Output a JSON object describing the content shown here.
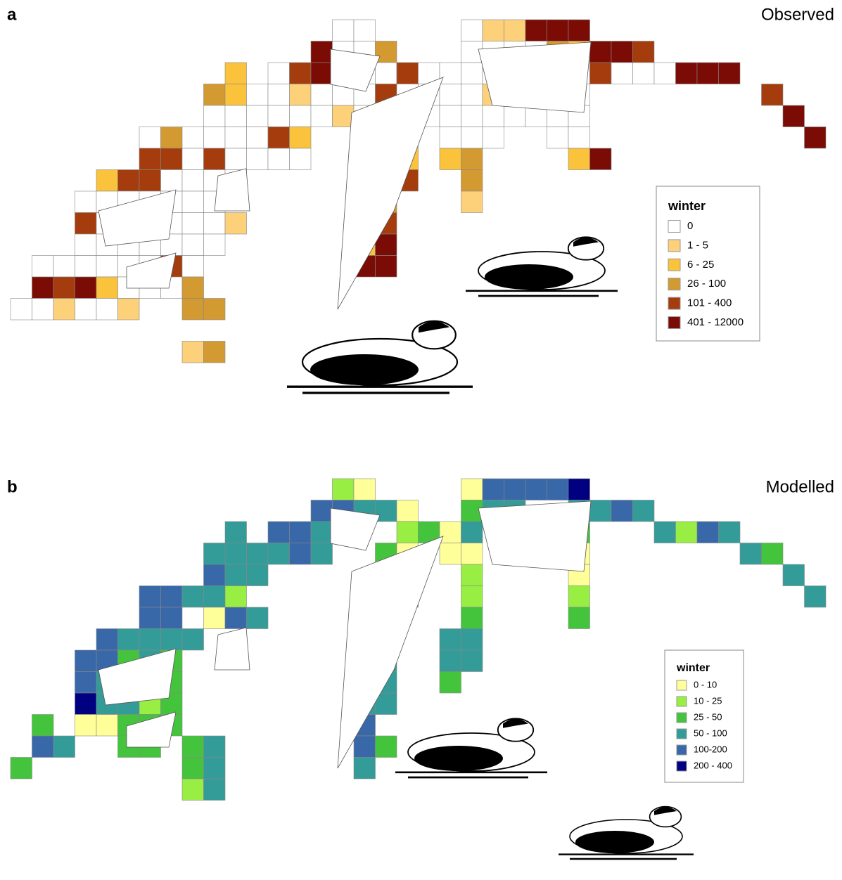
{
  "panels": [
    {
      "letter": "a",
      "title": "Observed",
      "legend": {
        "title": "winter",
        "items": [
          {
            "label": "0",
            "color": "#ffffff"
          },
          {
            "label": "1 - 5",
            "color": "#fdd07a"
          },
          {
            "label": "6 - 25",
            "color": "#fbc33c"
          },
          {
            "label": "26 - 100",
            "color": "#d49a32"
          },
          {
            "label": "101 - 400",
            "color": "#a53c0e"
          },
          {
            "label": "401 - 12000",
            "color": "#7a0c05"
          }
        ]
      }
    },
    {
      "letter": "b",
      "title": "Modelled",
      "legend": {
        "title": "winter",
        "items": [
          {
            "label": "0 - 10",
            "color": "#ffff99"
          },
          {
            "label": "10 - 25",
            "color": "#99ee44"
          },
          {
            "label": "25 - 50",
            "color": "#44c43c"
          },
          {
            "label": "50 - 100",
            "color": "#339c99"
          },
          {
            "label": "100-200",
            "color": "#3868a8"
          },
          {
            "label": "200 - 400",
            "color": "#000080"
          }
        ]
      }
    }
  ]
}
